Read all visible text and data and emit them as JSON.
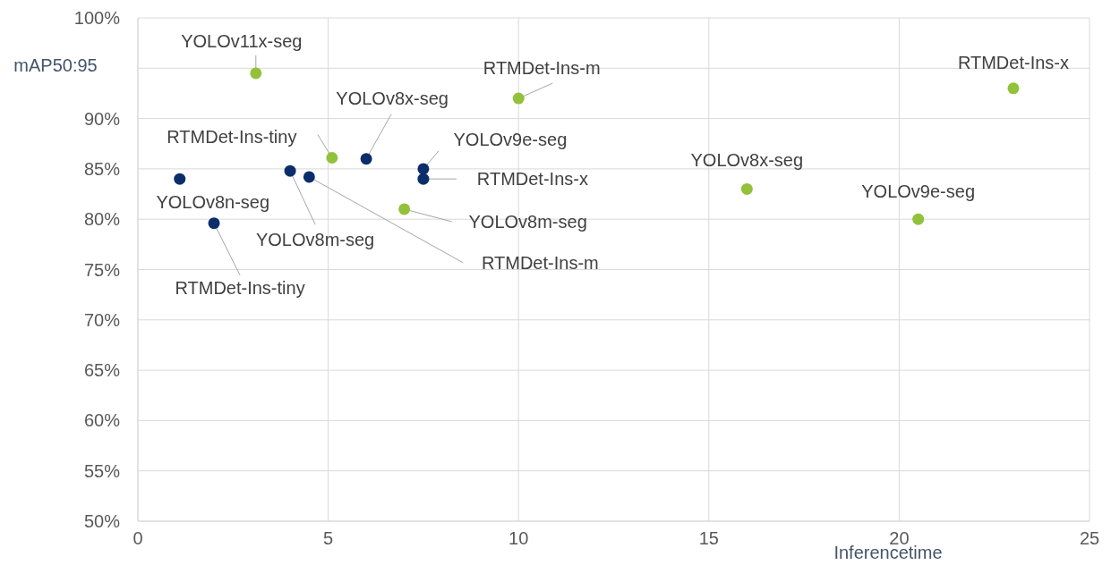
{
  "chart_data": {
    "type": "scatter",
    "ylabel": "mAP50:95",
    "xlabel": "Inferencetime",
    "xlim": [
      0,
      25
    ],
    "xticks": [
      0,
      5,
      10,
      15,
      20,
      25
    ],
    "ylim": [
      50,
      100
    ],
    "yticks": [
      {
        "value": 50,
        "label": "50%"
      },
      {
        "value": 55,
        "label": "55%"
      },
      {
        "value": 60,
        "label": "60%"
      },
      {
        "value": 65,
        "label": "65%"
      },
      {
        "value": 70,
        "label": "70%"
      },
      {
        "value": 75,
        "label": "75%"
      },
      {
        "value": 80,
        "label": "80%"
      },
      {
        "value": 85,
        "label": "85%"
      },
      {
        "value": 90,
        "label": "90%"
      },
      {
        "value": 95,
        "label": null
      },
      {
        "value": 100,
        "label": "100%"
      }
    ],
    "grid": true,
    "marker": "circle",
    "series": [
      {
        "color": "#0b2e6b",
        "x": [
          1.1,
          2.0,
          4.0,
          4.5,
          6.0,
          7.5,
          7.5
        ],
        "values": [
          84.0,
          79.6,
          84.8,
          84.2,
          86.0,
          85.0,
          84.0
        ]
      },
      {
        "color": "#92c13b",
        "x": [
          3.1,
          5.1,
          7.0,
          10.0,
          16.0,
          20.5,
          23.0
        ],
        "values": [
          94.5,
          86.1,
          81.0,
          92.0,
          83.0,
          80.0,
          93.0
        ]
      }
    ],
    "annotations": [
      {
        "text": "YOLOv8n-seg",
        "x": 1.1,
        "y": 84.0
      },
      {
        "text": "RTMDet-Ins-tiny",
        "x": 2.0,
        "y": 79.6
      },
      {
        "text": "YOLOv8m-seg",
        "x": 4.0,
        "y": 84.8
      },
      {
        "text": "RTMDet-Ins-m",
        "x": 4.5,
        "y": 84.2
      },
      {
        "text": "YOLOv8x-seg",
        "x": 6.0,
        "y": 86.0
      },
      {
        "text": "YOLOv9e-seg",
        "x": 7.5,
        "y": 85.0
      },
      {
        "text": "RTMDet-Ins-x",
        "x": 7.5,
        "y": 84.0
      },
      {
        "text": "YOLOv11x-seg",
        "x": 3.1,
        "y": 94.5
      },
      {
        "text": "RTMDet-Ins-tiny",
        "x": 5.1,
        "y": 86.1
      },
      {
        "text": "YOLOv8m-seg",
        "x": 7.0,
        "y": 81.0
      },
      {
        "text": "RTMDet-Ins-m",
        "x": 10.0,
        "y": 92.0
      },
      {
        "text": "YOLOv8x-seg",
        "x": 16.0,
        "y": 83.0
      },
      {
        "text": "YOLOv9e-seg",
        "x": 20.5,
        "y": 80.0
      },
      {
        "text": "RTMDet-Ins-x",
        "x": 23.0,
        "y": 93.0
      }
    ]
  }
}
